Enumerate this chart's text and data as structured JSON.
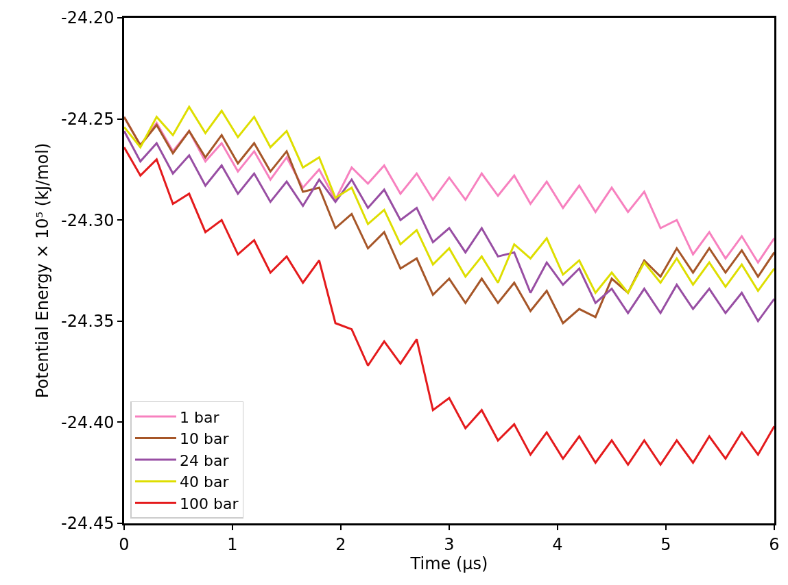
{
  "chart_data": {
    "type": "line",
    "xlabel": "Time (μs)",
    "ylabel": "Potential Energy × 10⁵ (kJ/mol)",
    "x": [
      0,
      0.15,
      0.3,
      0.45,
      0.6,
      0.75,
      0.9,
      1.05,
      1.2,
      1.35,
      1.5,
      1.65,
      1.8,
      1.95,
      2.1,
      2.25,
      2.4,
      2.55,
      2.7,
      2.85,
      3,
      3.15,
      3.3,
      3.45,
      3.6,
      3.75,
      3.9,
      4.05,
      4.2,
      4.35,
      4.5,
      4.65,
      4.8,
      4.95,
      5.1,
      5.25,
      5.4,
      5.55,
      5.7,
      5.85,
      6
    ],
    "series": [
      {
        "name": "1 bar",
        "color": "#f781bf",
        "values": [
          -24.249,
          -24.263,
          -24.252,
          -24.266,
          -24.256,
          -24.271,
          -24.262,
          -24.276,
          -24.266,
          -24.28,
          -24.269,
          -24.284,
          -24.275,
          -24.29,
          -24.274,
          -24.282,
          -24.273,
          -24.287,
          -24.277,
          -24.29,
          -24.279,
          -24.29,
          -24.277,
          -24.288,
          -24.278,
          -24.292,
          -24.281,
          -24.294,
          -24.283,
          -24.296,
          -24.284,
          -24.296,
          -24.286,
          -24.304,
          -24.3,
          -24.317,
          -24.306,
          -24.319,
          -24.308,
          -24.321,
          -24.309
        ]
      },
      {
        "name": "10 bar",
        "color": "#a65628",
        "values": [
          -24.249,
          -24.263,
          -24.253,
          -24.267,
          -24.256,
          -24.269,
          -24.258,
          -24.272,
          -24.262,
          -24.276,
          -24.266,
          -24.286,
          -24.284,
          -24.304,
          -24.297,
          -24.314,
          -24.306,
          -24.324,
          -24.319,
          -24.337,
          -24.329,
          -24.341,
          -24.329,
          -24.341,
          -24.331,
          -24.345,
          -24.335,
          -24.351,
          -24.344,
          -24.348,
          -24.329,
          -24.336,
          -24.32,
          -24.328,
          -24.314,
          -24.326,
          -24.314,
          -24.326,
          -24.315,
          -24.328,
          -24.316
        ]
      },
      {
        "name": "24 bar",
        "color": "#984ea3",
        "values": [
          -24.256,
          -24.271,
          -24.262,
          -24.277,
          -24.268,
          -24.283,
          -24.273,
          -24.287,
          -24.277,
          -24.291,
          -24.281,
          -24.293,
          -24.28,
          -24.291,
          -24.28,
          -24.294,
          -24.285,
          -24.3,
          -24.294,
          -24.311,
          -24.304,
          -24.316,
          -24.304,
          -24.318,
          -24.316,
          -24.336,
          -24.321,
          -24.332,
          -24.324,
          -24.341,
          -24.334,
          -24.346,
          -24.334,
          -24.346,
          -24.332,
          -24.344,
          -24.334,
          -24.346,
          -24.336,
          -24.35,
          -24.339
        ]
      },
      {
        "name": "40 bar",
        "color": "#dede00",
        "values": [
          -24.254,
          -24.264,
          -24.249,
          -24.258,
          -24.244,
          -24.257,
          -24.246,
          -24.259,
          -24.249,
          -24.264,
          -24.256,
          -24.274,
          -24.269,
          -24.289,
          -24.284,
          -24.302,
          -24.295,
          -24.312,
          -24.305,
          -24.322,
          -24.314,
          -24.328,
          -24.318,
          -24.331,
          -24.312,
          -24.319,
          -24.309,
          -24.327,
          -24.32,
          -24.336,
          -24.326,
          -24.336,
          -24.321,
          -24.331,
          -24.319,
          -24.332,
          -24.321,
          -24.333,
          -24.322,
          -24.335,
          -24.324
        ]
      },
      {
        "name": "100 bar",
        "color": "#e41a1c",
        "values": [
          -24.264,
          -24.278,
          -24.27,
          -24.292,
          -24.287,
          -24.306,
          -24.3,
          -24.317,
          -24.31,
          -24.326,
          -24.318,
          -24.331,
          -24.32,
          -24.351,
          -24.354,
          -24.372,
          -24.36,
          -24.371,
          -24.359,
          -24.394,
          -24.388,
          -24.403,
          -24.394,
          -24.409,
          -24.401,
          -24.416,
          -24.405,
          -24.418,
          -24.407,
          -24.42,
          -24.409,
          -24.421,
          -24.409,
          -24.421,
          -24.409,
          -24.42,
          -24.407,
          -24.418,
          -24.405,
          -24.416,
          -24.402
        ]
      }
    ],
    "xlim": [
      0,
      6
    ],
    "xticks": [
      0,
      1,
      2,
      3,
      4,
      5,
      6
    ],
    "ylim": [
      -24.45,
      -24.2
    ],
    "yticks": [
      {
        "value": -24.45,
        "label": "-24.45"
      },
      {
        "value": -24.4,
        "label": "-24.40"
      },
      {
        "value": -24.35,
        "label": "-24.35"
      },
      {
        "value": -24.3,
        "label": "-24.30"
      },
      {
        "value": -24.25,
        "label": "-24.25"
      },
      {
        "value": -24.2,
        "label": "-24.20"
      }
    ],
    "legend": "bottom left",
    "marker": "none",
    "line_style": "solid"
  }
}
